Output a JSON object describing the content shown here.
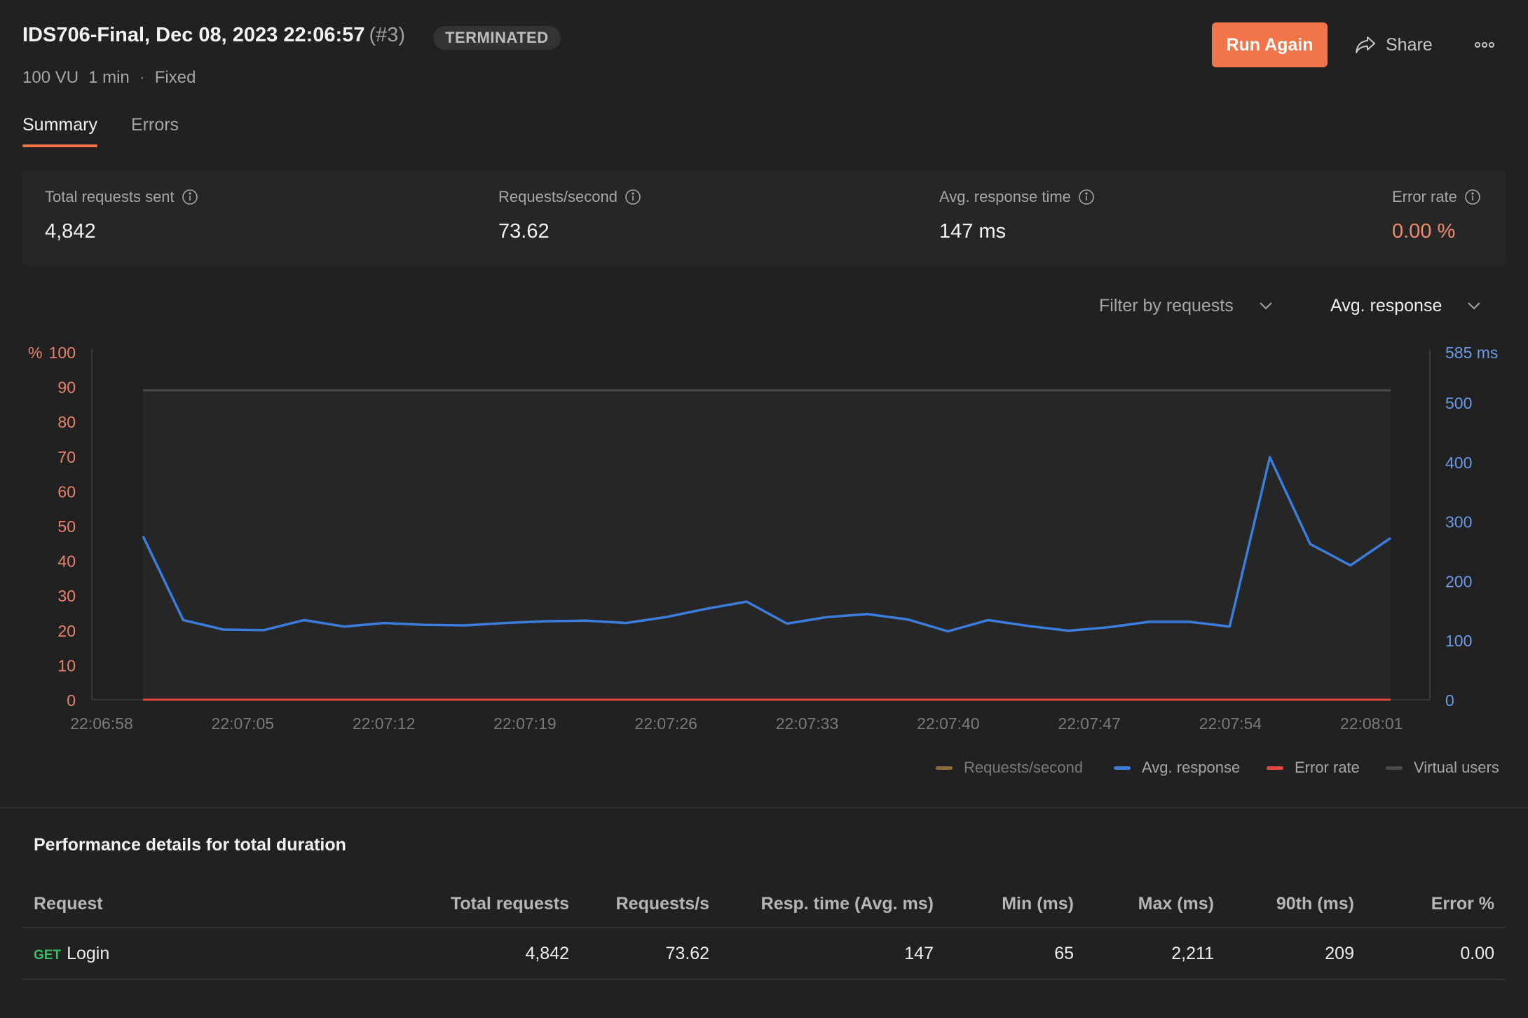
{
  "header": {
    "title": "IDS706-Final, Dec 08, 2023 22:06:57",
    "run_number": "(#3)",
    "status": "TERMINATED",
    "vus": "100 VU",
    "duration": "1 min",
    "separator": "·",
    "profile": "Fixed",
    "run_again_label": "Run Again",
    "share_label": "Share"
  },
  "tabs": [
    {
      "label": "Summary",
      "active": true
    },
    {
      "label": "Errors",
      "active": false
    }
  ],
  "stats": {
    "total_requests": {
      "label": "Total requests sent",
      "value": "4,842"
    },
    "requests_per_second": {
      "label": "Requests/second",
      "value": "73.62"
    },
    "avg_response": {
      "label": "Avg. response time",
      "value": "147 ms"
    },
    "error_rate": {
      "label": "Error rate",
      "value": "0.00 %"
    }
  },
  "filters": {
    "requests": "Filter by requests",
    "metric": "Avg. response"
  },
  "chart_data": {
    "type": "line",
    "x_labels": [
      "22:06:58",
      "22:07:05",
      "22:07:12",
      "22:07:19",
      "22:07:26",
      "22:07:33",
      "22:07:40",
      "22:07:47",
      "22:07:54",
      "22:08:01"
    ],
    "left_axis": {
      "unit_label": "%",
      "ticks": [
        "100",
        "90",
        "80",
        "70",
        "60",
        "50",
        "40",
        "30",
        "20",
        "10",
        "0"
      ],
      "range": [
        0,
        100
      ]
    },
    "right_axis": {
      "top_label": "585 ms",
      "ticks": [
        "500",
        "400",
        "300",
        "200",
        "100",
        "0"
      ],
      "range": [
        0,
        585
      ]
    },
    "series": [
      {
        "name": "Avg. response",
        "color": "#3b7ddd",
        "axis": "right",
        "values": [
          275,
          134,
          118,
          117,
          134,
          123,
          129,
          126,
          125,
          129,
          132,
          133,
          129,
          139,
          153,
          165,
          128,
          139,
          144,
          135,
          115,
          134,
          124,
          116,
          122,
          131,
          131,
          123,
          408,
          262,
          226,
          272
        ]
      },
      {
        "name": "Error rate",
        "color": "#e2483d",
        "axis": "left",
        "values": [
          0,
          0,
          0,
          0,
          0,
          0,
          0,
          0,
          0,
          0,
          0,
          0,
          0,
          0,
          0,
          0,
          0,
          0,
          0,
          0,
          0,
          0,
          0,
          0,
          0,
          0,
          0,
          0,
          0,
          0,
          0,
          0
        ]
      },
      {
        "name": "Virtual users",
        "color": "#4a4a4a",
        "axis": "left",
        "values": [
          89,
          89,
          89,
          89,
          89,
          89,
          89,
          89,
          89,
          89,
          89,
          89,
          89,
          89,
          89,
          89,
          89,
          89,
          89,
          89,
          89,
          89,
          89,
          89,
          89,
          89,
          89,
          89,
          89,
          89,
          89,
          89
        ]
      }
    ],
    "legend": [
      {
        "name": "Requests/second",
        "color": "#8a6d3b",
        "muted": true
      },
      {
        "name": "Avg. response",
        "color": "#3b7ddd",
        "muted": false
      },
      {
        "name": "Error rate",
        "color": "#e2483d",
        "muted": false
      },
      {
        "name": "Virtual users",
        "color": "#4a4a4a",
        "muted": false
      }
    ]
  },
  "performance": {
    "title": "Performance details for total duration",
    "columns": [
      "Request",
      "Total requests",
      "Requests/s",
      "Resp. time (Avg. ms)",
      "Min (ms)",
      "Max (ms)",
      "90th (ms)",
      "Error %"
    ],
    "rows": [
      {
        "method": "GET",
        "name": "Login",
        "total": "4,842",
        "rps": "73.62",
        "avg": "147",
        "min": "65",
        "max": "2,211",
        "p90": "209",
        "error": "0.00"
      }
    ]
  }
}
